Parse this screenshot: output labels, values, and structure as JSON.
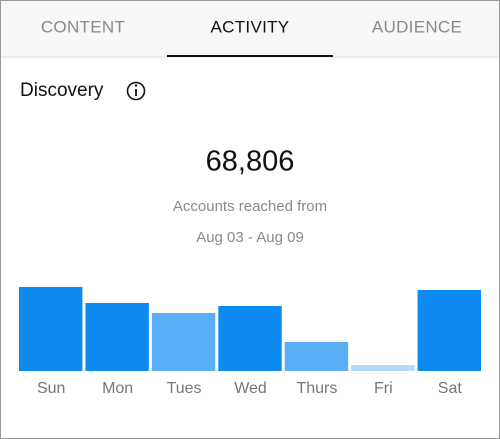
{
  "tabs": [
    "CONTENT",
    "ACTIVITY",
    "AUDIENCE"
  ],
  "active_tab": 1,
  "section": {
    "title": "Discovery",
    "metric": "68,806",
    "caption": "Accounts reached from",
    "date_range": "Aug 03 - Aug 09"
  },
  "chart_data": {
    "type": "bar",
    "categories": [
      "Sun",
      "Mon",
      "Tues",
      "Wed",
      "Thurs",
      "Fri",
      "Sat"
    ],
    "values": [
      84,
      68,
      58,
      65,
      29,
      6,
      81
    ],
    "colors": [
      "#0d8bf0",
      "#0d8bf0",
      "#5aaef6",
      "#0d8bf0",
      "#5aaef6",
      "#b3d9fb",
      "#0d8bf0"
    ]
  }
}
